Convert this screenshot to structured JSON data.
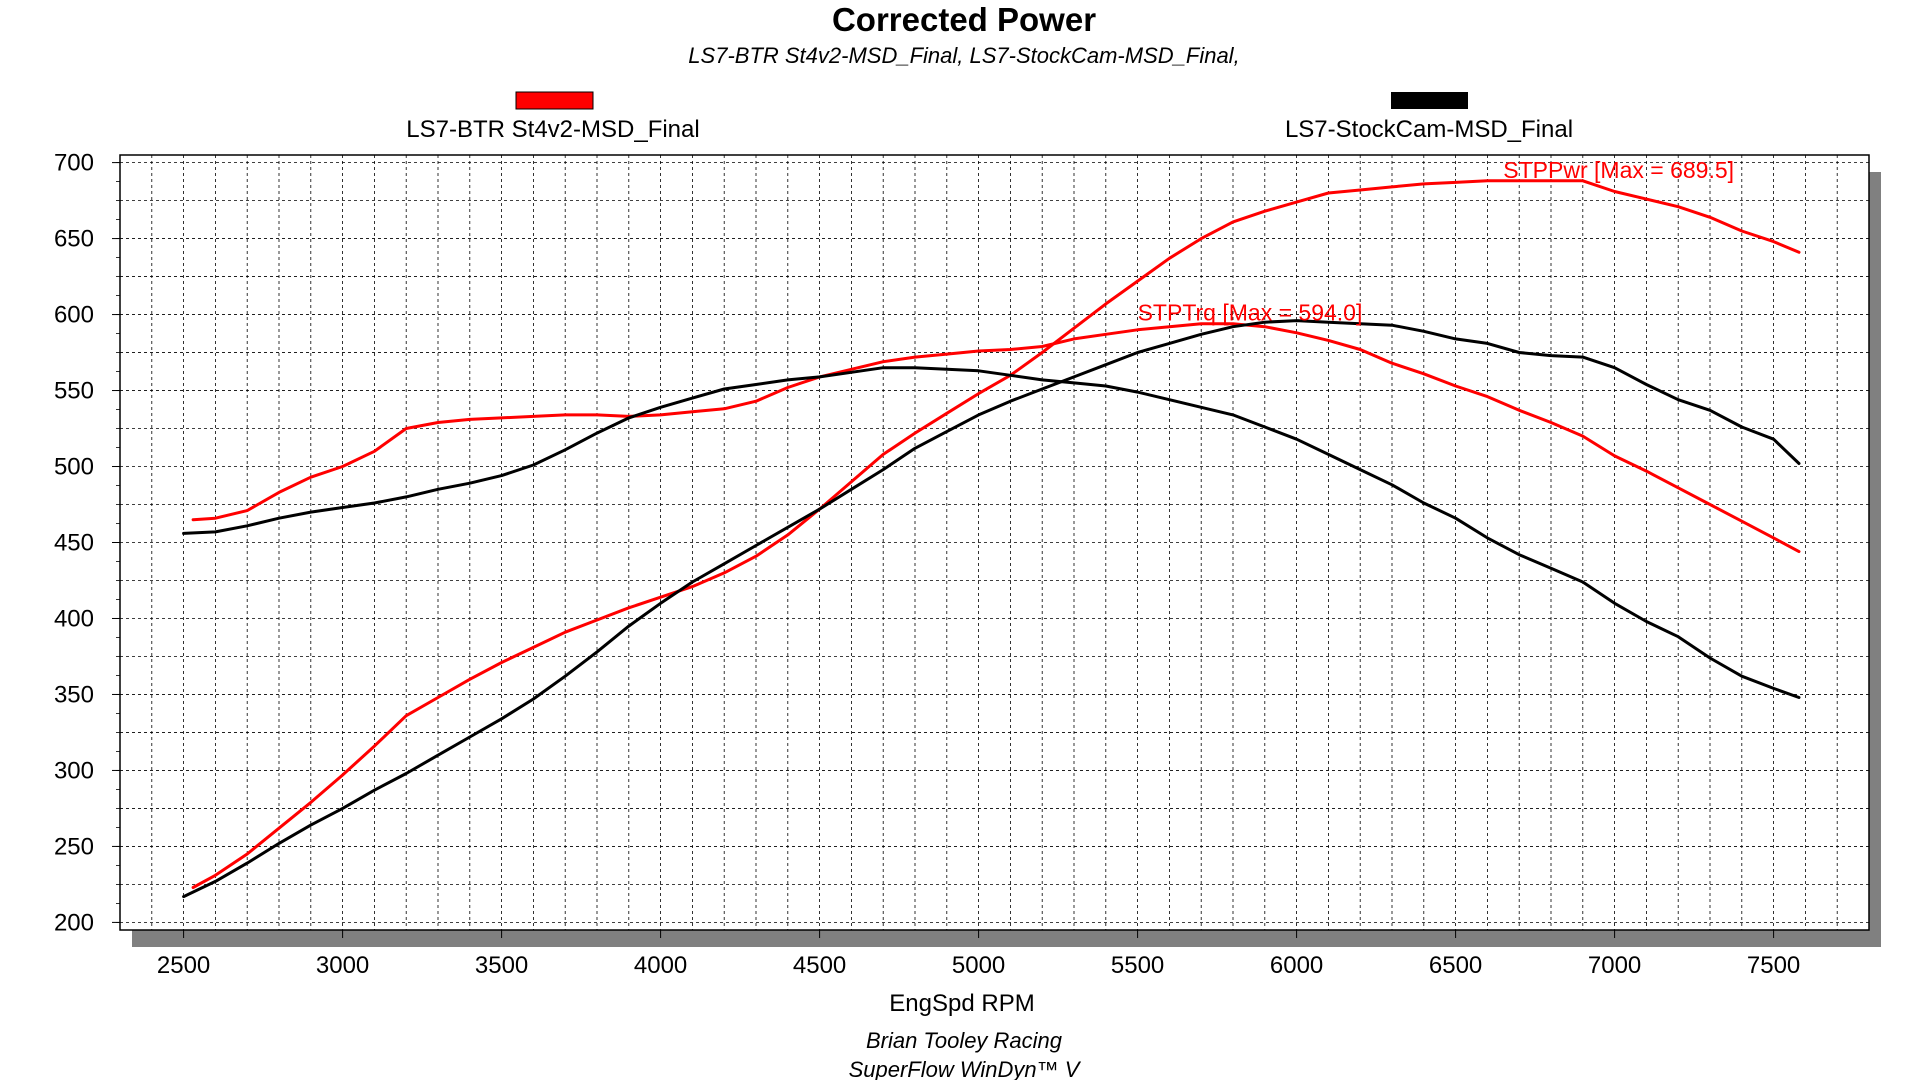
{
  "chart_data": {
    "type": "line",
    "title": "Corrected Power",
    "subtitle": "LS7-BTR St4v2-MSD_Final, LS7-StockCam-MSD_Final,",
    "xlabel": "EngSpd RPM",
    "ylabel": "",
    "xlim": [
      2300,
      7800
    ],
    "ylim": [
      195,
      705
    ],
    "xticks": [
      2500,
      3000,
      3500,
      4000,
      4500,
      5000,
      5500,
      6000,
      6500,
      7000,
      7500
    ],
    "yticks": [
      200,
      250,
      300,
      350,
      400,
      450,
      500,
      550,
      600,
      650,
      700
    ],
    "grid": true,
    "legend_placement": "top",
    "legend": [
      {
        "name": "LS7-BTR St4v2-MSD_Final",
        "color": "#ff0000"
      },
      {
        "name": "LS7-StockCam-MSD_Final",
        "color": "#000000"
      }
    ],
    "annotations": [
      {
        "text": "STPPwr [Max = 689.5]",
        "color": "#ff0000",
        "x": 6650,
        "y": 690
      },
      {
        "text": "STPTrq [Max = 594.0]",
        "color": "#ff0000",
        "x": 5500,
        "y": 596
      }
    ],
    "footer": [
      "Brian Tooley Racing",
      "SuperFlow WinDyn™ V"
    ],
    "series": [
      {
        "name": "LS7-BTR St4v2-MSD_Final STPPwr",
        "color": "#ff0000",
        "x": [
          2530,
          2600,
          2700,
          2800,
          2900,
          3000,
          3100,
          3200,
          3300,
          3400,
          3500,
          3600,
          3700,
          3800,
          3900,
          4000,
          4100,
          4200,
          4300,
          4400,
          4500,
          4600,
          4700,
          4800,
          4900,
          5000,
          5100,
          5200,
          5300,
          5400,
          5500,
          5600,
          5700,
          5800,
          5900,
          6000,
          6100,
          6200,
          6300,
          6400,
          6500,
          6600,
          6700,
          6800,
          6900,
          7000,
          7100,
          7200,
          7300,
          7400,
          7500,
          7580
        ],
        "values": [
          223,
          231,
          245,
          262,
          279,
          297,
          316,
          336,
          348,
          360,
          371,
          381,
          391,
          399,
          407,
          414,
          421,
          430,
          441,
          455,
          472,
          490,
          508,
          522,
          535,
          548,
          560,
          575,
          591,
          607,
          622,
          637,
          650,
          661,
          668,
          674,
          680,
          682,
          684,
          686,
          687,
          688,
          688,
          688,
          688,
          681,
          676,
          671,
          664,
          655,
          648,
          641
        ]
      },
      {
        "name": "LS7-BTR St4v2-MSD_Final STPTrq",
        "color": "#ff0000",
        "x": [
          2530,
          2600,
          2700,
          2800,
          2900,
          3000,
          3100,
          3200,
          3300,
          3400,
          3500,
          3600,
          3700,
          3800,
          3900,
          4000,
          4100,
          4200,
          4300,
          4400,
          4500,
          4600,
          4700,
          4800,
          4900,
          5000,
          5100,
          5200,
          5300,
          5400,
          5500,
          5600,
          5700,
          5800,
          5900,
          6000,
          6100,
          6200,
          6300,
          6400,
          6500,
          6600,
          6700,
          6800,
          6900,
          7000,
          7100,
          7200,
          7300,
          7400,
          7500,
          7580
        ],
        "values": [
          465,
          466,
          471,
          483,
          493,
          500,
          510,
          525,
          529,
          531,
          532,
          533,
          534,
          534,
          533,
          534,
          536,
          538,
          543,
          552,
          559,
          564,
          569,
          572,
          574,
          576,
          577,
          579,
          584,
          587,
          590,
          592,
          594,
          594,
          592,
          588,
          583,
          577,
          568,
          561,
          553,
          546,
          537,
          529,
          520,
          507,
          497,
          486,
          475,
          464,
          453,
          444
        ]
      },
      {
        "name": "LS7-StockCam-MSD_Final STPPwr",
        "color": "#000000",
        "x": [
          2500,
          2600,
          2700,
          2800,
          2900,
          3000,
          3100,
          3200,
          3300,
          3400,
          3500,
          3600,
          3700,
          3800,
          3900,
          4000,
          4100,
          4200,
          4300,
          4400,
          4500,
          4600,
          4700,
          4800,
          4900,
          5000,
          5100,
          5200,
          5300,
          5400,
          5500,
          5600,
          5700,
          5800,
          5900,
          6000,
          6100,
          6200,
          6300,
          6400,
          6500,
          6600,
          6700,
          6800,
          6900,
          7000,
          7100,
          7200,
          7300,
          7400,
          7500,
          7580
        ],
        "values": [
          217,
          227,
          239,
          252,
          264,
          275,
          287,
          298,
          310,
          322,
          334,
          347,
          362,
          378,
          395,
          410,
          424,
          436,
          448,
          460,
          472,
          485,
          498,
          512,
          523,
          534,
          543,
          551,
          559,
          567,
          575,
          581,
          587,
          592,
          595,
          596,
          595,
          594,
          593,
          589,
          584,
          581,
          575,
          573,
          572,
          565,
          554,
          544,
          537,
          526,
          518,
          502
        ]
      },
      {
        "name": "LS7-StockCam-MSD_Final STPTrq",
        "color": "#000000",
        "x": [
          2500,
          2600,
          2700,
          2800,
          2900,
          3000,
          3100,
          3200,
          3300,
          3400,
          3500,
          3600,
          3700,
          3800,
          3900,
          4000,
          4100,
          4200,
          4300,
          4400,
          4500,
          4600,
          4700,
          4800,
          4900,
          5000,
          5100,
          5200,
          5300,
          5400,
          5500,
          5600,
          5700,
          5800,
          5900,
          6000,
          6100,
          6200,
          6300,
          6400,
          6500,
          6600,
          6700,
          6800,
          6900,
          7000,
          7100,
          7200,
          7300,
          7400,
          7500,
          7580
        ],
        "values": [
          456,
          457,
          461,
          466,
          470,
          473,
          476,
          480,
          485,
          489,
          494,
          501,
          511,
          522,
          532,
          539,
          545,
          551,
          554,
          557,
          559,
          562,
          565,
          565,
          564,
          563,
          560,
          557,
          555,
          553,
          549,
          544,
          539,
          534,
          526,
          518,
          508,
          498,
          488,
          476,
          466,
          453,
          442,
          433,
          424,
          410,
          398,
          388,
          374,
          362,
          354,
          348
        ]
      }
    ]
  }
}
